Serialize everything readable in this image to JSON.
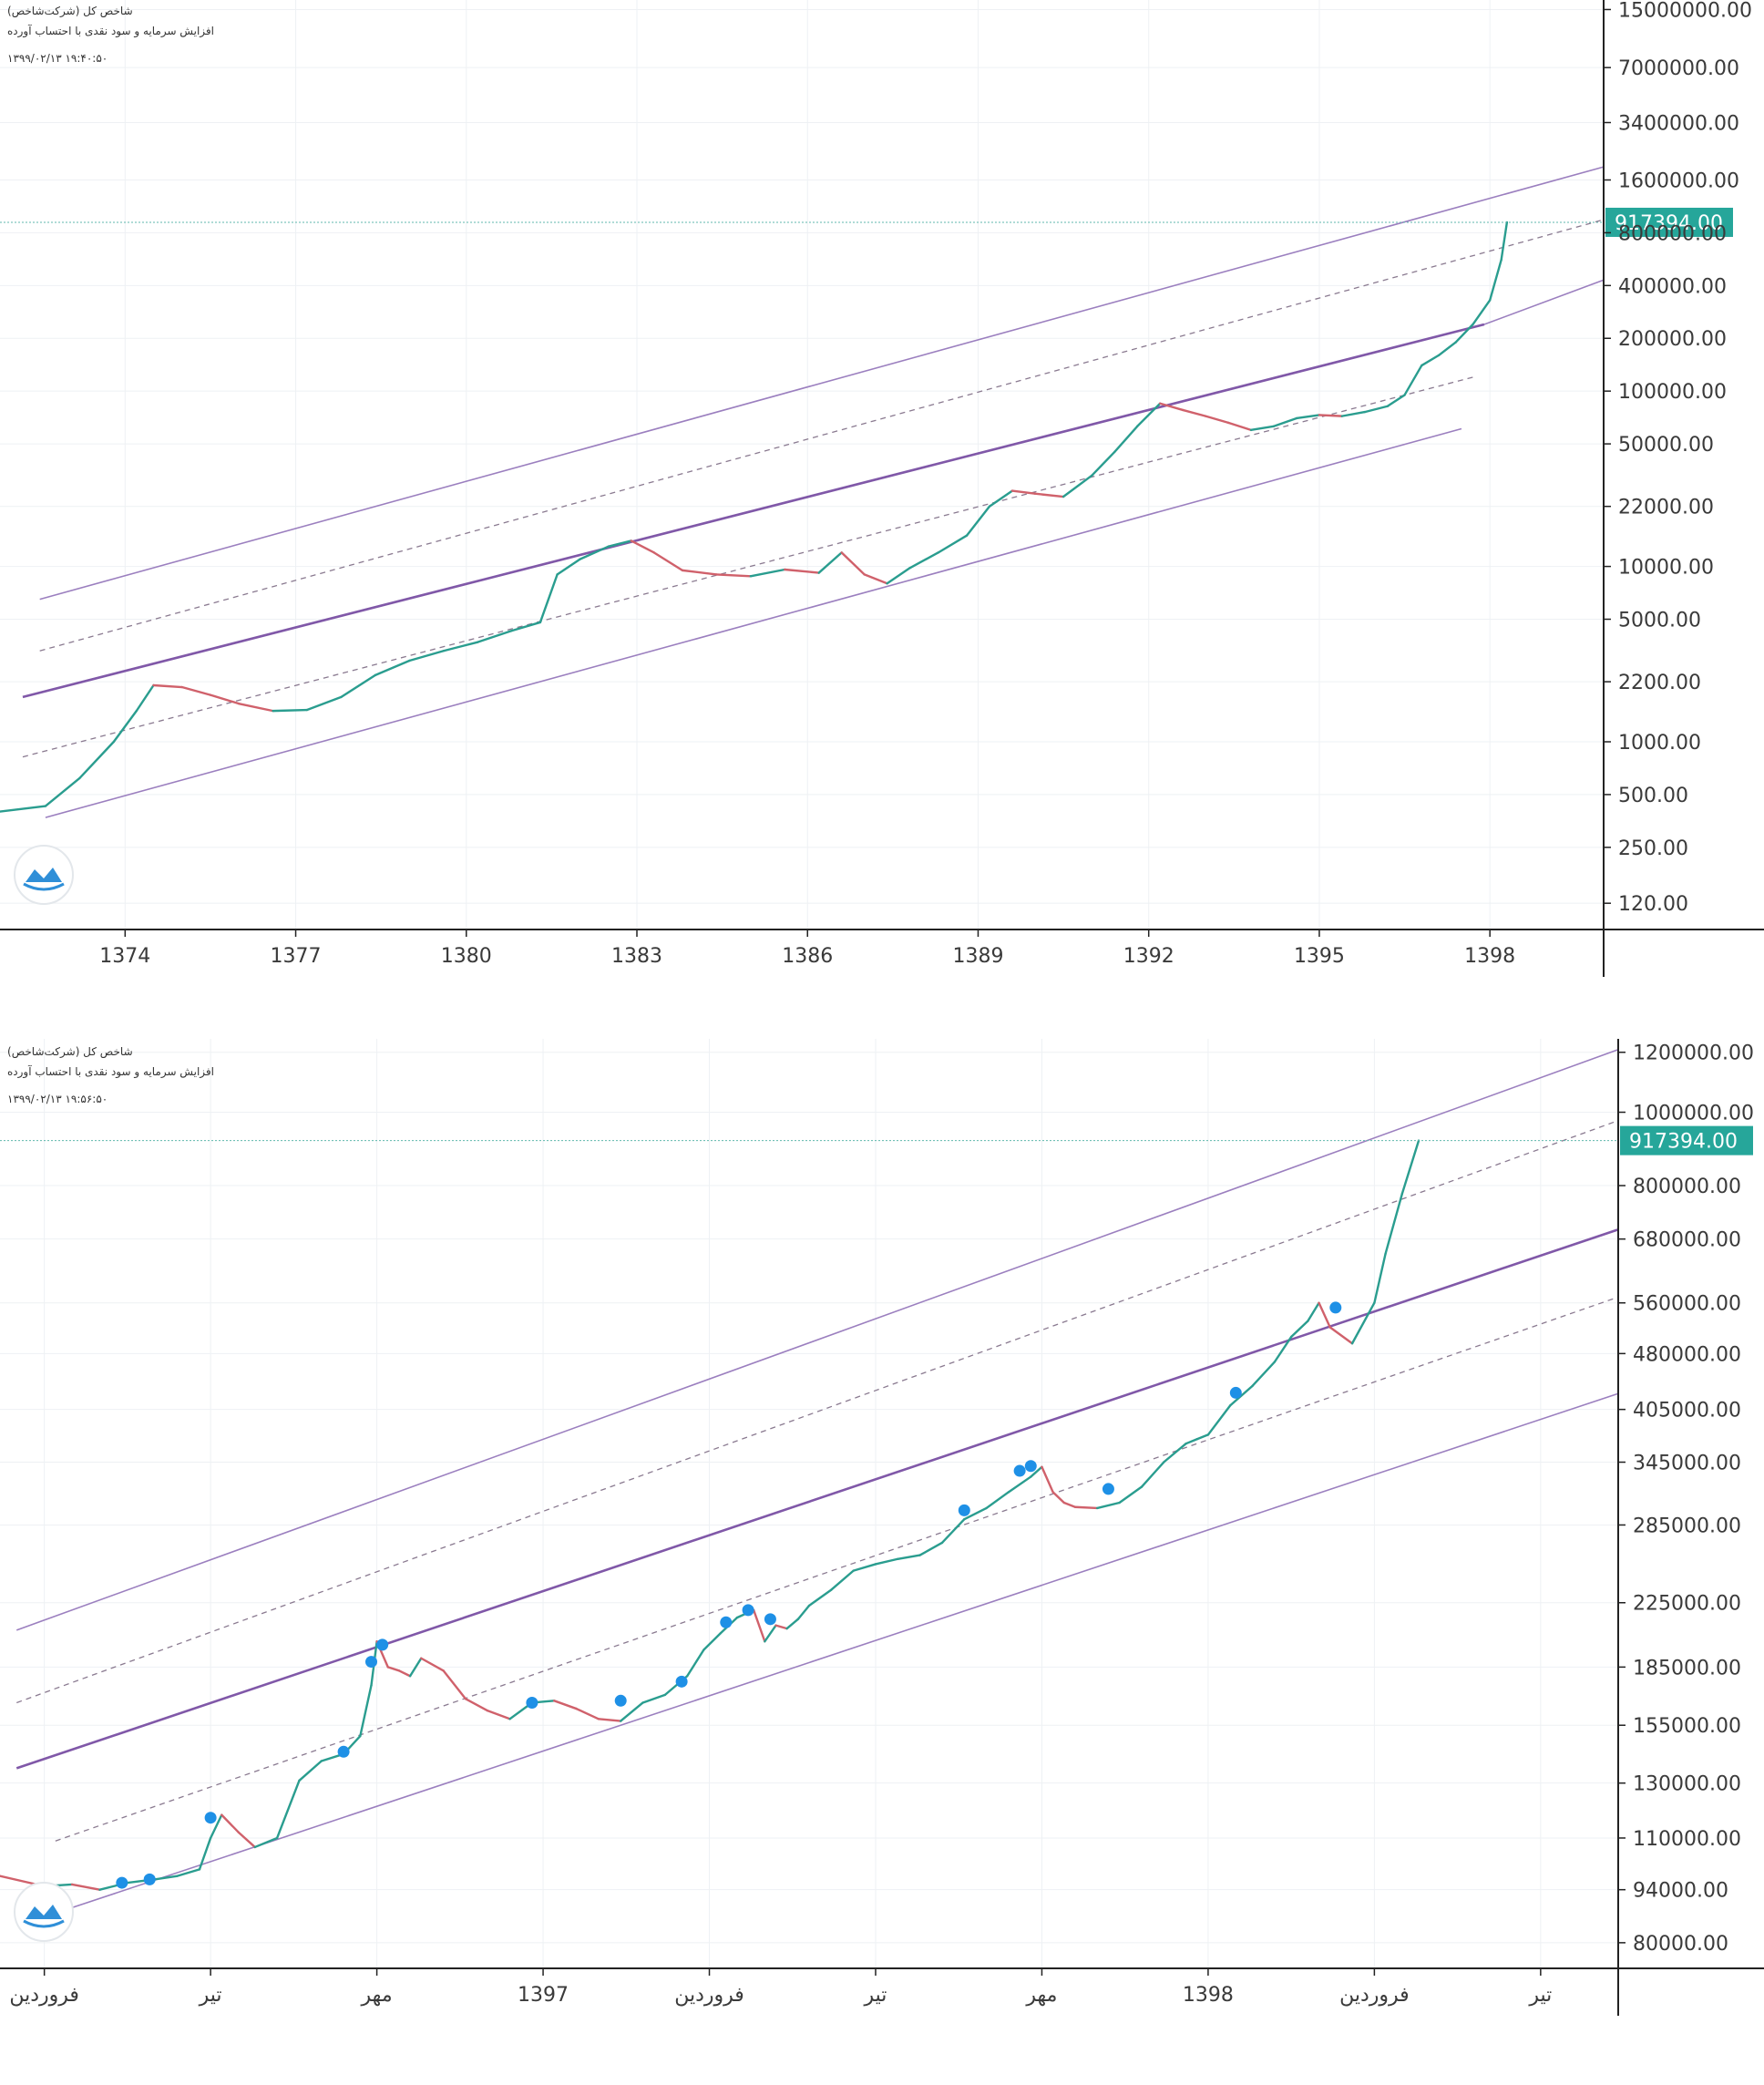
{
  "chart_data": [
    {
      "type": "line",
      "scale": "log",
      "legend": {
        "title": "(شاخص کل (شرکت‌شاخص",
        "line2": "افزایش سرمایه و سود نقدی با احتساب آورده",
        "time": "۱۳۹۹/۰۲/۱۳   ۱۹:۴۰:۵۰"
      },
      "price_label": "917394.00",
      "y_ticks": [
        "15000000.00",
        "7000000.00",
        "3400000.00",
        "1600000.00",
        "800000.00",
        "400000.00",
        "200000.00",
        "100000.00",
        "50000.00",
        "22000.00",
        "10000.00",
        "5000.00",
        "2200.00",
        "1000.00",
        "500.00",
        "250.00",
        "120.00"
      ],
      "y_tick_values": [
        15000000,
        7000000,
        3400000,
        1600000,
        800000,
        400000,
        200000,
        100000,
        50000,
        22000,
        10000,
        5000,
        2200,
        1000,
        500,
        250,
        120
      ],
      "x_ticks": [
        "1374",
        "1377",
        "1380",
        "1383",
        "1386",
        "1389",
        "1392",
        "1395",
        "1398"
      ],
      "x_tick_values": [
        1374,
        1377,
        1380,
        1383,
        1386,
        1389,
        1392,
        1395,
        1398
      ],
      "xlim": [
        1371.8,
        1400.0
      ],
      "ylim": [
        85,
        17000000
      ],
      "last_price": 917394,
      "series": [
        {
          "x": [
            1371.8,
            1372.6,
            1373.2,
            1373.8,
            1374.2,
            1374.5,
            1375.0,
            1375.5,
            1376.0,
            1376.6,
            1377.2,
            1377.8,
            1378.4,
            1379.0,
            1379.6,
            1380.2,
            1380.8,
            1381.3,
            1381.6,
            1382.0,
            1382.5,
            1382.9,
            1383.3,
            1383.8,
            1384.4,
            1385.0,
            1385.6,
            1386.2,
            1386.6,
            1387.0,
            1387.4,
            1387.8,
            1388.3,
            1388.8,
            1389.2,
            1389.6,
            1390.0,
            1390.5,
            1391.0,
            1391.4,
            1391.8,
            1392.2,
            1392.6,
            1393.0,
            1393.4,
            1393.8,
            1394.2,
            1394.6,
            1395.0,
            1395.4,
            1395.8,
            1396.2,
            1396.5,
            1396.8,
            1397.1,
            1397.4,
            1397.7,
            1398.0,
            1398.2,
            1398.3
          ],
          "y": [
            400,
            430,
            620,
            1000,
            1500,
            2100,
            2050,
            1850,
            1650,
            1500,
            1520,
            1800,
            2400,
            2900,
            3300,
            3700,
            4300,
            4800,
            9000,
            11000,
            13000,
            14000,
            12000,
            9500,
            9000,
            8800,
            9600,
            9200,
            12000,
            9000,
            8000,
            9800,
            12000,
            15000,
            22000,
            27000,
            26000,
            25000,
            33000,
            45000,
            63000,
            85000,
            78000,
            72000,
            66000,
            60000,
            63000,
            70000,
            73000,
            72000,
            76000,
            82000,
            95000,
            140000,
            160000,
            190000,
            240000,
            330000,
            560000,
            917394
          ]
        }
      ],
      "channel": {
        "upper": [
          [
            1372.5,
            6500
          ],
          [
            1400.0,
            1900000
          ]
        ],
        "mid_upper_dashed": [
          [
            1372.5,
            3300
          ],
          [
            1400.0,
            950000
          ]
        ],
        "middle": [
          [
            1372.2,
            1800
          ],
          [
            1397.9,
            240000
          ]
        ],
        "mid_lower_dashed": [
          [
            1372.2,
            820
          ],
          [
            1397.7,
            120000
          ]
        ],
        "lower": [
          [
            1372.6,
            370
          ],
          [
            1397.5,
            61000
          ]
        ],
        "extension": [
          [
            1397.9,
            240000
          ],
          [
            1400.0,
            430000
          ]
        ]
      }
    },
    {
      "type": "line",
      "scale": "log",
      "legend": {
        "title": "(شاخص کل (شرکت‌شاخص",
        "line2": "افزایش سرمایه و سود نقدی با احتساب آورده",
        "time": "۱۳۹۹/۰۲/۱۳   ۱۹:۵۶:۵۰"
      },
      "price_label": "917394.00",
      "y_ticks": [
        "1200000.00",
        "1000000.00",
        "800000.00",
        "680000.00",
        "560000.00",
        "480000.00",
        "405000.00",
        "345000.00",
        "285000.00",
        "225000.00",
        "185000.00",
        "155000.00",
        "130000.00",
        "110000.00",
        "94000.00",
        "80000.00"
      ],
      "y_tick_values": [
        1200000,
        1000000,
        800000,
        680000,
        560000,
        480000,
        405000,
        345000,
        285000,
        225000,
        185000,
        155000,
        130000,
        110000,
        94000,
        80000
      ],
      "x_ticks": [
        "فروردین",
        "تیر",
        "مهر",
        "1397",
        "فروردین",
        "تیر",
        "مهر",
        "1398",
        "فروردین",
        "تیر"
      ],
      "x_tick_values": [
        0,
        3,
        6,
        9,
        12,
        15,
        18,
        21,
        24,
        27
      ],
      "x_unit": "months since فروردین 1396",
      "xlim": [
        -0.8,
        28.4
      ],
      "ylim": [
        74000,
        1250000
      ],
      "last_price": 917394,
      "series": [
        {
          "x": [
            -0.8,
            0.0,
            0.5,
            1.0,
            1.5,
            2.0,
            2.4,
            2.8,
            3.0,
            3.2,
            3.5,
            3.8,
            4.2,
            4.6,
            5.0,
            5.4,
            5.7,
            5.9,
            6.0,
            6.2,
            6.4,
            6.6,
            6.8,
            7.2,
            7.6,
            8.0,
            8.4,
            8.8,
            9.2,
            9.6,
            10.0,
            10.4,
            10.8,
            11.2,
            11.6,
            11.9,
            12.2,
            12.5,
            12.8,
            13.0,
            13.2,
            13.4,
            13.6,
            13.8,
            14.2,
            14.6,
            15.0,
            15.4,
            15.8,
            16.2,
            16.6,
            17.0,
            17.4,
            17.8,
            18.0,
            18.2,
            18.4,
            18.6,
            19.0,
            19.4,
            19.8,
            20.2,
            20.6,
            20.8,
            21.0,
            21.4,
            21.8,
            22.2,
            22.5,
            22.8,
            23.0,
            23.2,
            23.6,
            24.0,
            24.2,
            24.5,
            24.8
          ],
          "y": [
            98000,
            95000,
            95500,
            94000,
            96000,
            97000,
            98000,
            100000,
            110000,
            118000,
            112000,
            107000,
            110000,
            131000,
            139000,
            142000,
            150000,
            175000,
            200000,
            185000,
            183000,
            180000,
            190000,
            183000,
            168000,
            162000,
            158000,
            166000,
            167000,
            163000,
            158000,
            157000,
            166000,
            170000,
            180000,
            195000,
            205000,
            215000,
            220000,
            200000,
            210000,
            208000,
            214000,
            223000,
            234000,
            248000,
            253000,
            257000,
            260000,
            270000,
            290000,
            300000,
            315000,
            330000,
            340000,
            315000,
            305000,
            301000,
            300000,
            305000,
            320000,
            345000,
            365000,
            370000,
            375000,
            410000,
            435000,
            468000,
            505000,
            530000,
            560000,
            520000,
            495000,
            560000,
            650000,
            780000,
            917394
          ]
        }
      ],
      "channel": {
        "upper": [
          [
            -0.5,
            207000
          ],
          [
            28.4,
            1210000
          ]
        ],
        "mid_upper_dashed": [
          [
            -0.5,
            166000
          ],
          [
            28.4,
            975000
          ]
        ],
        "middle": [
          [
            -0.5,
            136000
          ],
          [
            28.4,
            700000
          ]
        ],
        "mid_lower_dashed": [
          [
            0.2,
            109000
          ],
          [
            28.4,
            570000
          ]
        ],
        "lower": [
          [
            0.5,
            89000
          ],
          [
            28.4,
            425000
          ]
        ]
      },
      "markers": [
        {
          "x": 1.4,
          "y": 96000
        },
        {
          "x": 1.9,
          "y": 97000
        },
        {
          "x": 3.0,
          "y": 117000
        },
        {
          "x": 5.4,
          "y": 143000
        },
        {
          "x": 5.9,
          "y": 188000
        },
        {
          "x": 6.1,
          "y": 198000
        },
        {
          "x": 8.8,
          "y": 166000
        },
        {
          "x": 10.4,
          "y": 167000
        },
        {
          "x": 11.5,
          "y": 177000
        },
        {
          "x": 12.3,
          "y": 212000
        },
        {
          "x": 12.7,
          "y": 220000
        },
        {
          "x": 13.1,
          "y": 214000
        },
        {
          "x": 16.6,
          "y": 298000
        },
        {
          "x": 17.6,
          "y": 336000
        },
        {
          "x": 17.8,
          "y": 341000
        },
        {
          "x": 19.2,
          "y": 318000
        },
        {
          "x": 21.5,
          "y": 426000
        },
        {
          "x": 23.3,
          "y": 552000
        }
      ]
    }
  ]
}
